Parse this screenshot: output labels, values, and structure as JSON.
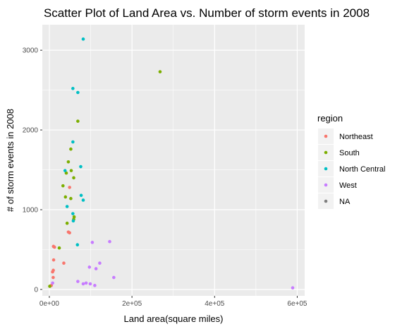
{
  "chart_data": {
    "type": "scatter",
    "title": "Scatter Plot of Land Area vs. Number of storm events in 2008",
    "xlabel": "Land area(square miles)",
    "ylabel": "# of storm events in 2008",
    "xlim": [
      -17000,
      618000
    ],
    "ylim": [
      -80,
      3320
    ],
    "x_ticks": [
      0,
      200000,
      400000,
      600000
    ],
    "x_tick_labels": [
      "0e+00",
      "2e+05",
      "4e+05",
      "6e+05"
    ],
    "y_ticks": [
      0,
      1000,
      2000,
      3000
    ],
    "y_tick_labels": [
      "0",
      "1000",
      "2000",
      "3000"
    ],
    "grid": true,
    "legend": {
      "title": "region",
      "placement": "right",
      "entries": [
        "Northeast",
        "South",
        "North Central",
        "West",
        "NA"
      ]
    },
    "colors": {
      "Northeast": "#f8766d",
      "South": "#7cae00",
      "North Central": "#00bfc4",
      "West": "#c77cff",
      "NA": "#7f7f7f",
      "panel": "#ebebeb",
      "grid": "#ffffff"
    },
    "series": [
      {
        "name": "Northeast",
        "points": [
          [
            1200,
            40
          ],
          [
            4800,
            50
          ],
          [
            7800,
            220
          ],
          [
            9600,
            240
          ],
          [
            10400,
            370
          ],
          [
            10000,
            540
          ],
          [
            12500,
            530
          ],
          [
            9300,
            150
          ],
          [
            35000,
            330
          ],
          [
            46000,
            720
          ],
          [
            49000,
            710
          ],
          [
            49000,
            1280
          ]
        ]
      },
      {
        "name": "South",
        "points": [
          [
            1000,
            40
          ],
          [
            24000,
            520
          ],
          [
            33000,
            1300
          ],
          [
            39000,
            1160
          ],
          [
            41000,
            1460
          ],
          [
            43000,
            830
          ],
          [
            46000,
            1600
          ],
          [
            52000,
            1140
          ],
          [
            52000,
            1760
          ],
          [
            53000,
            1490
          ],
          [
            59000,
            880
          ],
          [
            59000,
            1400
          ],
          [
            60000,
            910
          ],
          [
            69000,
            2110
          ],
          [
            268000,
            2730
          ]
        ]
      },
      {
        "name": "North Central",
        "points": [
          [
            38000,
            1490
          ],
          [
            43000,
            1040
          ],
          [
            57000,
            950
          ],
          [
            57000,
            1850
          ],
          [
            57000,
            2520
          ],
          [
            58000,
            860
          ],
          [
            68000,
            560
          ],
          [
            69000,
            2470
          ],
          [
            76000,
            1540
          ],
          [
            77000,
            1180
          ],
          [
            82000,
            1120
          ],
          [
            82000,
            3140
          ]
        ]
      },
      {
        "name": "West",
        "points": [
          [
            8000,
            80
          ],
          [
            69000,
            100
          ],
          [
            82000,
            70
          ],
          [
            89000,
            80
          ],
          [
            97000,
            280
          ],
          [
            99000,
            70
          ],
          [
            104000,
            590
          ],
          [
            110000,
            50
          ],
          [
            113000,
            260
          ],
          [
            122000,
            330
          ],
          [
            146000,
            600
          ],
          [
            156000,
            150
          ],
          [
            589000,
            20
          ]
        ]
      },
      {
        "name": "NA",
        "points": []
      }
    ]
  }
}
